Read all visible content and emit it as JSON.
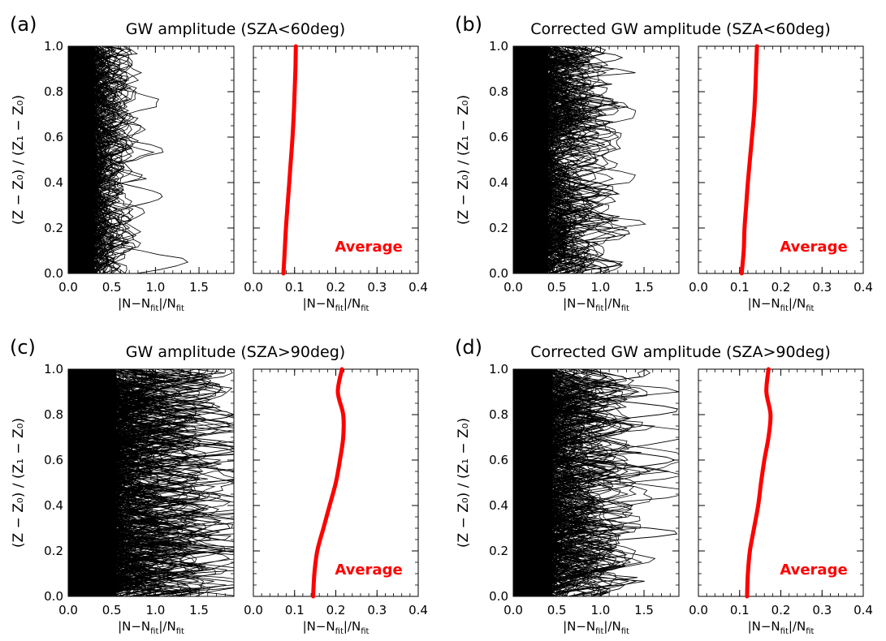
{
  "panels": [
    {
      "letter": "(a)",
      "title": "GW amplitude (SZA<60deg)",
      "ylabel": "(Z − Z₀) / (Z₁ − Z₀)",
      "left": {
        "xlabel": "|N−N_fit|/N_fit",
        "xlim": [
          0,
          1.9
        ],
        "xticks": [
          "0.0",
          "0.5",
          "1.0",
          "1.5"
        ],
        "xtick_values": [
          0,
          0.5,
          1.0,
          1.5
        ],
        "ylim": [
          0,
          1
        ],
        "yticks": [
          "0.0",
          "0.2",
          "0.4",
          "0.6",
          "0.8",
          "1.0"
        ],
        "ytick_values": [
          0,
          0.2,
          0.4,
          0.6,
          0.8,
          1.0
        ],
        "profiles": {
          "count": 160,
          "core_max": 0.3,
          "spread": 0.45,
          "seed": 11
        },
        "outliers": [
          {
            "peak_y": 0.34,
            "peak_x": 1.08,
            "width": 0.06
          },
          {
            "peak_y": 0.93,
            "peak_x": 0.6,
            "width": 0.05
          },
          {
            "peak_y": 0.78,
            "peak_x": 0.55,
            "width": 0.05
          }
        ]
      },
      "right": {
        "xlabel": "|N−N_fit|/N_fit",
        "xlim": [
          0,
          0.4
        ],
        "xticks": [
          "0.0",
          "0.1",
          "0.2",
          "0.3",
          "0.4"
        ],
        "xtick_values": [
          0,
          0.1,
          0.2,
          0.3,
          0.4
        ],
        "average_label": "Average",
        "average": {
          "y": [
            0,
            0.1,
            0.2,
            0.3,
            0.4,
            0.5,
            0.6,
            0.7,
            0.8,
            0.9,
            1.0
          ],
          "x": [
            0.073,
            0.076,
            0.079,
            0.083,
            0.087,
            0.091,
            0.095,
            0.098,
            0.1,
            0.102,
            0.103
          ]
        }
      }
    },
    {
      "letter": "(b)",
      "title": "Corrected GW amplitude (SZA<60deg)",
      "ylabel": "(Z − Z₀) / (Z₁ − Z₀)",
      "left": {
        "xlabel": "|N−N_fit|/N_fit",
        "xlim": [
          0,
          1.9
        ],
        "xticks": [
          "0.0",
          "0.5",
          "1.0",
          "1.5"
        ],
        "xtick_values": [
          0,
          0.5,
          1.0,
          1.5
        ],
        "ylim": [
          0,
          1
        ],
        "yticks": [
          "0.0",
          "0.2",
          "0.4",
          "0.6",
          "0.8",
          "1.0"
        ],
        "ytick_values": [
          0,
          0.2,
          0.4,
          0.6,
          0.8,
          1.0
        ],
        "profiles": {
          "count": 180,
          "core_max": 0.4,
          "spread": 0.75,
          "seed": 23
        },
        "outliers": [
          {
            "peak_y": 0.18,
            "peak_x": 1.35,
            "width": 0.04
          },
          {
            "peak_y": 0.04,
            "peak_x": 1.25,
            "width": 0.03
          },
          {
            "peak_y": 0.95,
            "peak_x": 1.25,
            "width": 0.04
          },
          {
            "peak_y": 0.36,
            "peak_x": 1.0,
            "width": 0.05
          }
        ]
      },
      "right": {
        "xlabel": "|N−N_fit|/N_fit",
        "xlim": [
          0,
          0.4
        ],
        "xticks": [
          "0.0",
          "0.1",
          "0.2",
          "0.3",
          "0.4"
        ],
        "xtick_values": [
          0,
          0.1,
          0.2,
          0.3,
          0.4
        ],
        "average_label": "Average",
        "average": {
          "y": [
            0,
            0.1,
            0.2,
            0.3,
            0.4,
            0.5,
            0.6,
            0.7,
            0.8,
            0.9,
            1.0
          ],
          "x": [
            0.105,
            0.11,
            0.112,
            0.116,
            0.12,
            0.125,
            0.13,
            0.135,
            0.138,
            0.14,
            0.142
          ]
        }
      }
    },
    {
      "letter": "(c)",
      "title": "GW amplitude (SZA>90deg)",
      "ylabel": "(Z − Z₀) / (Z₁ − Z₀)",
      "left": {
        "xlabel": "|N−N_fit|/N_fit",
        "xlim": [
          0,
          1.9
        ],
        "xticks": [
          "0.0",
          "0.5",
          "1.0",
          "1.5"
        ],
        "xtick_values": [
          0,
          0.5,
          1.0,
          1.5
        ],
        "ylim": [
          0,
          1
        ],
        "yticks": [
          "0.0",
          "0.2",
          "0.4",
          "0.6",
          "0.8",
          "1.0"
        ],
        "ytick_values": [
          0,
          0.2,
          0.4,
          0.6,
          0.8,
          1.0
        ],
        "profiles": {
          "count": 220,
          "core_max": 0.55,
          "spread": 1.25,
          "seed": 37
        },
        "outliers": [
          {
            "peak_y": 0.8,
            "peak_x": 1.9,
            "width": 0.05
          },
          {
            "peak_y": 0.64,
            "peak_x": 1.9,
            "width": 0.04
          },
          {
            "peak_y": 0.44,
            "peak_x": 1.75,
            "width": 0.05
          },
          {
            "peak_y": 0.92,
            "peak_x": 1.6,
            "width": 0.05
          }
        ]
      },
      "right": {
        "xlabel": "|N−N_fit|/N_fit",
        "xlim": [
          0,
          0.4
        ],
        "xticks": [
          "0.0",
          "0.1",
          "0.2",
          "0.3",
          "0.4"
        ],
        "xtick_values": [
          0,
          0.1,
          0.2,
          0.3,
          0.4
        ],
        "average_label": "Average",
        "average": {
          "y": [
            0,
            0.1,
            0.2,
            0.3,
            0.4,
            0.5,
            0.6,
            0.7,
            0.8,
            0.9,
            1.0
          ],
          "x": [
            0.145,
            0.148,
            0.155,
            0.17,
            0.185,
            0.2,
            0.21,
            0.218,
            0.218,
            0.205,
            0.215
          ]
        }
      }
    },
    {
      "letter": "(d)",
      "title": "Corrected GW amplitude (SZA>90deg)",
      "ylabel": "(Z − Z₀) / (Z₁ − Z₀)",
      "left": {
        "xlabel": "|N−N_fit|/N_fit",
        "xlim": [
          0,
          1.9
        ],
        "xticks": [
          "0.0",
          "0.5",
          "1.0",
          "1.5"
        ],
        "xtick_values": [
          0,
          0.5,
          1.0,
          1.5
        ],
        "ylim": [
          0,
          1
        ],
        "yticks": [
          "0.0",
          "0.2",
          "0.4",
          "0.6",
          "0.8",
          "1.0"
        ],
        "ytick_values": [
          0,
          0.2,
          0.4,
          0.6,
          0.8,
          1.0
        ],
        "profiles": {
          "count": 200,
          "core_max": 0.45,
          "spread": 0.95,
          "seed": 53
        },
        "outliers": [
          {
            "peak_y": 0.82,
            "peak_x": 1.9,
            "width": 0.05
          },
          {
            "peak_y": 0.6,
            "peak_x": 1.85,
            "width": 0.05
          },
          {
            "peak_y": 0.5,
            "peak_x": 1.4,
            "width": 0.05
          },
          {
            "peak_y": 0.28,
            "peak_x": 1.9,
            "width": 0.04
          },
          {
            "peak_y": 0.92,
            "peak_x": 1.3,
            "width": 0.04
          }
        ]
      },
      "right": {
        "xlabel": "|N−N_fit|/N_fit",
        "xlim": [
          0,
          0.4
        ],
        "xticks": [
          "0.0",
          "0.1",
          "0.2",
          "0.3",
          "0.4"
        ],
        "xtick_values": [
          0,
          0.1,
          0.2,
          0.3,
          0.4
        ],
        "average_label": "Average",
        "average": {
          "y": [
            0,
            0.1,
            0.2,
            0.3,
            0.4,
            0.5,
            0.6,
            0.7,
            0.8,
            0.9,
            1.0
          ],
          "x": [
            0.118,
            0.12,
            0.125,
            0.135,
            0.145,
            0.152,
            0.16,
            0.17,
            0.175,
            0.165,
            0.17
          ]
        }
      }
    }
  ],
  "chart_data": [
    {
      "type": "line",
      "title": "GW amplitude (SZA<60deg)",
      "panel": "(a) right",
      "series": [
        {
          "name": "Average",
          "x": [
            0.073,
            0.076,
            0.079,
            0.083,
            0.087,
            0.091,
            0.095,
            0.098,
            0.1,
            0.102,
            0.103
          ],
          "y": [
            0,
            0.1,
            0.2,
            0.3,
            0.4,
            0.5,
            0.6,
            0.7,
            0.8,
            0.9,
            1.0
          ]
        }
      ],
      "xlabel": "|N−N_fit|/N_fit",
      "ylabel": "(Z − Z0) / (Z1 − Z0)",
      "xlim": [
        0,
        0.4
      ],
      "ylim": [
        0,
        1
      ]
    },
    {
      "type": "line",
      "title": "Corrected GW amplitude (SZA<60deg)",
      "panel": "(b) right",
      "series": [
        {
          "name": "Average",
          "x": [
            0.105,
            0.11,
            0.112,
            0.116,
            0.12,
            0.125,
            0.13,
            0.135,
            0.138,
            0.14,
            0.142
          ],
          "y": [
            0,
            0.1,
            0.2,
            0.3,
            0.4,
            0.5,
            0.6,
            0.7,
            0.8,
            0.9,
            1.0
          ]
        }
      ],
      "xlabel": "|N−N_fit|/N_fit",
      "ylabel": "(Z − Z0) / (Z1 − Z0)",
      "xlim": [
        0,
        0.4
      ],
      "ylim": [
        0,
        1
      ]
    },
    {
      "type": "line",
      "title": "GW amplitude (SZA>90deg)",
      "panel": "(c) right",
      "series": [
        {
          "name": "Average",
          "x": [
            0.145,
            0.148,
            0.155,
            0.17,
            0.185,
            0.2,
            0.21,
            0.218,
            0.218,
            0.205,
            0.215
          ],
          "y": [
            0,
            0.1,
            0.2,
            0.3,
            0.4,
            0.5,
            0.6,
            0.7,
            0.8,
            0.9,
            1.0
          ]
        }
      ],
      "xlabel": "|N−N_fit|/N_fit",
      "ylabel": "(Z − Z0) / (Z1 − Z0)",
      "xlim": [
        0,
        0.4
      ],
      "ylim": [
        0,
        1
      ]
    },
    {
      "type": "line",
      "title": "Corrected GW amplitude (SZA>90deg)",
      "panel": "(d) right",
      "series": [
        {
          "name": "Average",
          "x": [
            0.118,
            0.12,
            0.125,
            0.135,
            0.145,
            0.152,
            0.16,
            0.17,
            0.175,
            0.165,
            0.17
          ],
          "y": [
            0,
            0.1,
            0.2,
            0.3,
            0.4,
            0.5,
            0.6,
            0.7,
            0.8,
            0.9,
            1.0
          ]
        }
      ],
      "xlabel": "|N−N_fit|/N_fit",
      "ylabel": "(Z − Z0) / (Z1 − Z0)",
      "xlim": [
        0,
        0.4
      ],
      "ylim": [
        0,
        1
      ]
    }
  ],
  "colors": {
    "axis": "#000000",
    "profiles": "#000000",
    "average": "#ff0000",
    "average_label": "#ff0000"
  }
}
